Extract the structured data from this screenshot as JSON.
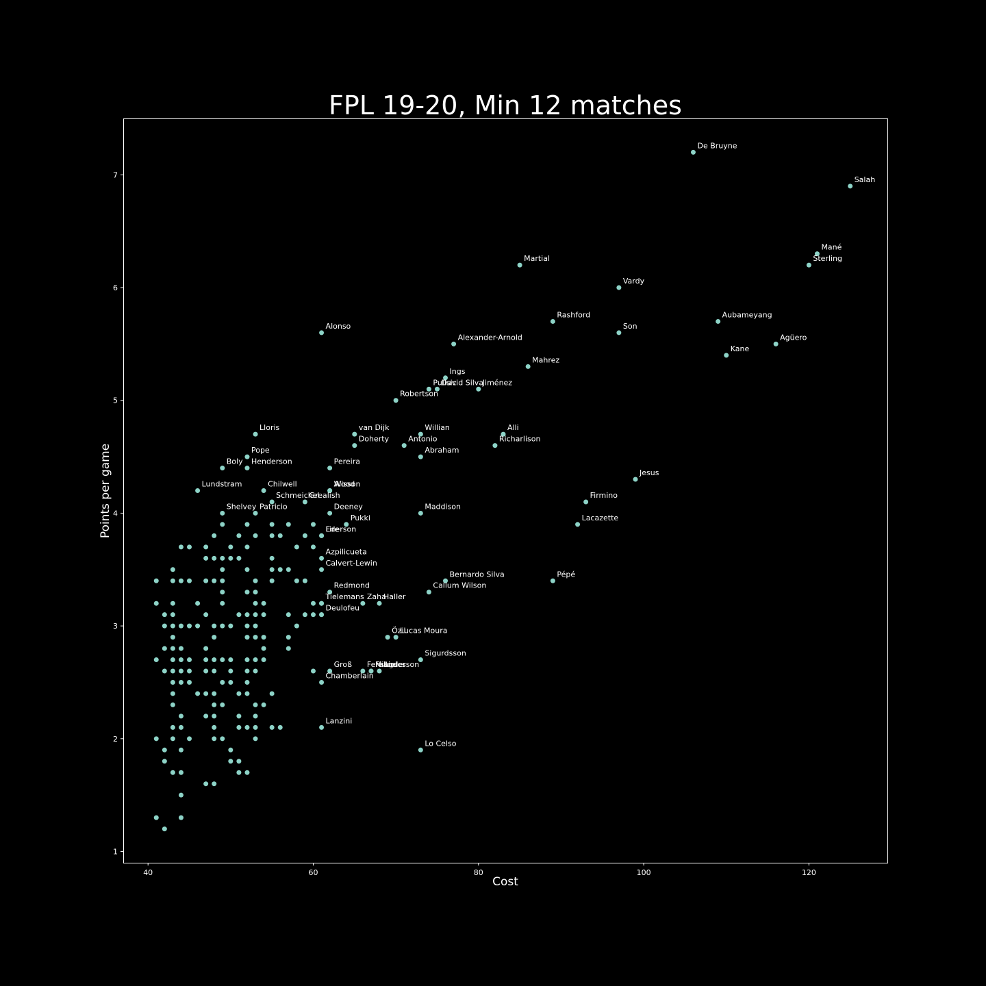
{
  "chart_data": {
    "type": "scatter",
    "title": "FPL 19-20, Min 12 matches",
    "xlabel": "Cost",
    "ylabel": "Points per game",
    "xlim": [
      37,
      129.5
    ],
    "ylim": [
      0.9,
      7.5
    ],
    "xticks": [
      40,
      60,
      80,
      100,
      120
    ],
    "yticks": [
      1,
      2,
      3,
      4,
      5,
      6,
      7
    ],
    "grid": false,
    "legend": false,
    "colors": {
      "background": "#000000",
      "marker": "#8dd3c7",
      "text": "#ffffff",
      "axes": "#ffffff"
    },
    "labeled_points": [
      {
        "x": 106,
        "y": 7.2,
        "label": "De Bruyne"
      },
      {
        "x": 125,
        "y": 6.9,
        "label": "Salah"
      },
      {
        "x": 121,
        "y": 6.3,
        "label": "Mané"
      },
      {
        "x": 120,
        "y": 6.2,
        "label": "Sterling"
      },
      {
        "x": 85,
        "y": 6.2,
        "label": "Martial"
      },
      {
        "x": 97,
        "y": 6.0,
        "label": "Vardy"
      },
      {
        "x": 89,
        "y": 5.7,
        "label": "Rashford"
      },
      {
        "x": 109,
        "y": 5.7,
        "label": "Aubameyang"
      },
      {
        "x": 97,
        "y": 5.6,
        "label": "Son"
      },
      {
        "x": 61,
        "y": 5.6,
        "label": "Alonso"
      },
      {
        "x": 77,
        "y": 5.5,
        "label": "Alexander-Arnold"
      },
      {
        "x": 116,
        "y": 5.5,
        "label": "Agüero"
      },
      {
        "x": 110,
        "y": 5.4,
        "label": "Kane"
      },
      {
        "x": 86,
        "y": 5.3,
        "label": "Mahrez"
      },
      {
        "x": 76,
        "y": 5.2,
        "label": "Ings"
      },
      {
        "x": 74,
        "y": 5.1,
        "label": "Pulisic"
      },
      {
        "x": 75,
        "y": 5.1,
        "label": "David Silva"
      },
      {
        "x": 80,
        "y": 5.1,
        "label": "Jiménez"
      },
      {
        "x": 70,
        "y": 5.0,
        "label": "Robertson"
      },
      {
        "x": 53,
        "y": 4.7,
        "label": "Lloris"
      },
      {
        "x": 65,
        "y": 4.7,
        "label": "van Dijk"
      },
      {
        "x": 73,
        "y": 4.7,
        "label": "Willian"
      },
      {
        "x": 83,
        "y": 4.7,
        "label": "Alli"
      },
      {
        "x": 65,
        "y": 4.6,
        "label": "Doherty"
      },
      {
        "x": 71,
        "y": 4.6,
        "label": "Antonio"
      },
      {
        "x": 82,
        "y": 4.6,
        "label": "Richarlison"
      },
      {
        "x": 52,
        "y": 4.5,
        "label": "Pope"
      },
      {
        "x": 73,
        "y": 4.5,
        "label": "Abraham"
      },
      {
        "x": 49,
        "y": 4.4,
        "label": "Boly"
      },
      {
        "x": 52,
        "y": 4.4,
        "label": "Henderson"
      },
      {
        "x": 62,
        "y": 4.4,
        "label": "Pereira"
      },
      {
        "x": 99,
        "y": 4.3,
        "label": "Jesus"
      },
      {
        "x": 46,
        "y": 4.2,
        "label": "Lundstram"
      },
      {
        "x": 54,
        "y": 4.2,
        "label": "Chilwell"
      },
      {
        "x": 62,
        "y": 4.2,
        "label": "Alisson"
      },
      {
        "x": 62,
        "y": 4.2,
        "label": "Wood"
      },
      {
        "x": 55,
        "y": 4.1,
        "label": "Schmeichel"
      },
      {
        "x": 59,
        "y": 4.1,
        "label": "Grealish"
      },
      {
        "x": 93,
        "y": 4.1,
        "label": "Firmino"
      },
      {
        "x": 49,
        "y": 4.0,
        "label": "Shelvey"
      },
      {
        "x": 53,
        "y": 4.0,
        "label": "Patricio"
      },
      {
        "x": 62,
        "y": 4.0,
        "label": "Deeney"
      },
      {
        "x": 73,
        "y": 4.0,
        "label": "Maddison"
      },
      {
        "x": 64,
        "y": 3.9,
        "label": "Pukki"
      },
      {
        "x": 92,
        "y": 3.9,
        "label": "Lacazette"
      },
      {
        "x": 61,
        "y": 3.8,
        "label": "Ederson"
      },
      {
        "x": 61,
        "y": 3.8,
        "label": "Fire"
      },
      {
        "x": 61,
        "y": 3.6,
        "label": "Azpilicueta"
      },
      {
        "x": 61,
        "y": 3.5,
        "label": "Calvert-Lewin"
      },
      {
        "x": 76,
        "y": 3.4,
        "label": "Bernardo Silva"
      },
      {
        "x": 89,
        "y": 3.4,
        "label": "Pépé"
      },
      {
        "x": 62,
        "y": 3.3,
        "label": "Redmond"
      },
      {
        "x": 74,
        "y": 3.3,
        "label": "Callum Wilson"
      },
      {
        "x": 61,
        "y": 3.2,
        "label": "Tielemans"
      },
      {
        "x": 66,
        "y": 3.2,
        "label": "Zaha"
      },
      {
        "x": 68,
        "y": 3.2,
        "label": "Haller"
      },
      {
        "x": 61,
        "y": 3.1,
        "label": "Deulofeu"
      },
      {
        "x": 69,
        "y": 2.9,
        "label": "Özil"
      },
      {
        "x": 70,
        "y": 2.9,
        "label": "Lucas Moura"
      },
      {
        "x": 73,
        "y": 2.7,
        "label": "Sigurdsson"
      },
      {
        "x": 62,
        "y": 2.6,
        "label": "Groß"
      },
      {
        "x": 66,
        "y": 2.6,
        "label": "Fernandes"
      },
      {
        "x": 67,
        "y": 2.6,
        "label": "Mings"
      },
      {
        "x": 67,
        "y": 2.6,
        "label": "Fabio"
      },
      {
        "x": 68,
        "y": 2.6,
        "label": "Anderson"
      },
      {
        "x": 61,
        "y": 2.5,
        "label": "Chamberlain"
      },
      {
        "x": 61,
        "y": 2.1,
        "label": "Lanzini"
      },
      {
        "x": 73,
        "y": 1.9,
        "label": "Lo Celso"
      }
    ],
    "other_points": [
      [
        41,
        3.4
      ],
      [
        41,
        3.2
      ],
      [
        41,
        2.7
      ],
      [
        41,
        2.0
      ],
      [
        41,
        1.3
      ],
      [
        42,
        3.1
      ],
      [
        42,
        3.0
      ],
      [
        42,
        2.8
      ],
      [
        42,
        2.6
      ],
      [
        42,
        1.9
      ],
      [
        42,
        1.8
      ],
      [
        42,
        1.2
      ],
      [
        43,
        3.5
      ],
      [
        43,
        3.4
      ],
      [
        43,
        3.2
      ],
      [
        43,
        3.1
      ],
      [
        43,
        3.0
      ],
      [
        43,
        2.9
      ],
      [
        43,
        2.8
      ],
      [
        43,
        2.7
      ],
      [
        43,
        2.6
      ],
      [
        43,
        2.5
      ],
      [
        43,
        2.4
      ],
      [
        43,
        2.3
      ],
      [
        43,
        2.1
      ],
      [
        43,
        2.0
      ],
      [
        43,
        1.7
      ],
      [
        44,
        3.7
      ],
      [
        44,
        3.4
      ],
      [
        44,
        3.0
      ],
      [
        44,
        2.8
      ],
      [
        44,
        2.7
      ],
      [
        44,
        2.6
      ],
      [
        44,
        2.5
      ],
      [
        44,
        2.2
      ],
      [
        44,
        2.1
      ],
      [
        44,
        1.9
      ],
      [
        44,
        1.7
      ],
      [
        44,
        1.5
      ],
      [
        44,
        1.3
      ],
      [
        45,
        3.7
      ],
      [
        45,
        3.4
      ],
      [
        45,
        3.0
      ],
      [
        45,
        2.7
      ],
      [
        45,
        2.6
      ],
      [
        45,
        2.5
      ],
      [
        45,
        2.0
      ],
      [
        46,
        3.2
      ],
      [
        46,
        3.0
      ],
      [
        46,
        2.4
      ],
      [
        47,
        3.7
      ],
      [
        47,
        3.6
      ],
      [
        47,
        3.4
      ],
      [
        47,
        3.1
      ],
      [
        47,
        2.8
      ],
      [
        47,
        2.7
      ],
      [
        47,
        2.6
      ],
      [
        47,
        2.4
      ],
      [
        47,
        2.2
      ],
      [
        47,
        1.6
      ],
      [
        48,
        3.8
      ],
      [
        48,
        3.6
      ],
      [
        48,
        3.4
      ],
      [
        48,
        3.0
      ],
      [
        48,
        2.9
      ],
      [
        48,
        2.7
      ],
      [
        48,
        2.6
      ],
      [
        48,
        2.4
      ],
      [
        48,
        2.3
      ],
      [
        48,
        2.2
      ],
      [
        48,
        2.1
      ],
      [
        48,
        2.0
      ],
      [
        48,
        1.6
      ],
      [
        49,
        3.9
      ],
      [
        49,
        3.6
      ],
      [
        49,
        3.5
      ],
      [
        49,
        3.4
      ],
      [
        49,
        3.3
      ],
      [
        49,
        3.2
      ],
      [
        49,
        3.0
      ],
      [
        49,
        2.7
      ],
      [
        49,
        2.5
      ],
      [
        49,
        2.3
      ],
      [
        49,
        2.0
      ],
      [
        50,
        3.7
      ],
      [
        50,
        3.6
      ],
      [
        50,
        3.0
      ],
      [
        50,
        2.7
      ],
      [
        50,
        2.6
      ],
      [
        50,
        2.5
      ],
      [
        50,
        1.9
      ],
      [
        50,
        1.8
      ],
      [
        51,
        3.8
      ],
      [
        51,
        3.6
      ],
      [
        51,
        3.1
      ],
      [
        51,
        2.4
      ],
      [
        51,
        2.2
      ],
      [
        51,
        2.1
      ],
      [
        51,
        1.8
      ],
      [
        51,
        1.7
      ],
      [
        52,
        3.9
      ],
      [
        52,
        3.7
      ],
      [
        52,
        3.5
      ],
      [
        52,
        3.3
      ],
      [
        52,
        3.1
      ],
      [
        52,
        3.0
      ],
      [
        52,
        2.9
      ],
      [
        52,
        2.7
      ],
      [
        52,
        2.6
      ],
      [
        52,
        2.5
      ],
      [
        52,
        2.4
      ],
      [
        52,
        2.1
      ],
      [
        52,
        1.7
      ],
      [
        53,
        3.8
      ],
      [
        53,
        3.4
      ],
      [
        53,
        3.3
      ],
      [
        53,
        3.2
      ],
      [
        53,
        3.1
      ],
      [
        53,
        3.0
      ],
      [
        53,
        2.9
      ],
      [
        53,
        2.7
      ],
      [
        53,
        2.6
      ],
      [
        53,
        2.3
      ],
      [
        53,
        2.2
      ],
      [
        53,
        2.1
      ],
      [
        53,
        2.0
      ],
      [
        54,
        3.2
      ],
      [
        54,
        3.1
      ],
      [
        54,
        2.9
      ],
      [
        54,
        2.8
      ],
      [
        54,
        2.7
      ],
      [
        54,
        2.3
      ],
      [
        55,
        3.9
      ],
      [
        55,
        3.8
      ],
      [
        55,
        3.6
      ],
      [
        55,
        3.5
      ],
      [
        55,
        3.4
      ],
      [
        55,
        2.4
      ],
      [
        55,
        2.1
      ],
      [
        56,
        3.8
      ],
      [
        56,
        3.5
      ],
      [
        56,
        2.1
      ],
      [
        57,
        3.9
      ],
      [
        57,
        3.5
      ],
      [
        57,
        3.1
      ],
      [
        57,
        2.9
      ],
      [
        57,
        2.8
      ],
      [
        58,
        3.7
      ],
      [
        58,
        3.4
      ],
      [
        58,
        3.0
      ],
      [
        59,
        3.8
      ],
      [
        59,
        3.4
      ],
      [
        59,
        3.1
      ],
      [
        60,
        3.9
      ],
      [
        60,
        3.7
      ],
      [
        60,
        3.2
      ],
      [
        60,
        3.1
      ],
      [
        60,
        2.6
      ],
      [
        61,
        3.2
      ],
      [
        61,
        3.1
      ]
    ]
  }
}
